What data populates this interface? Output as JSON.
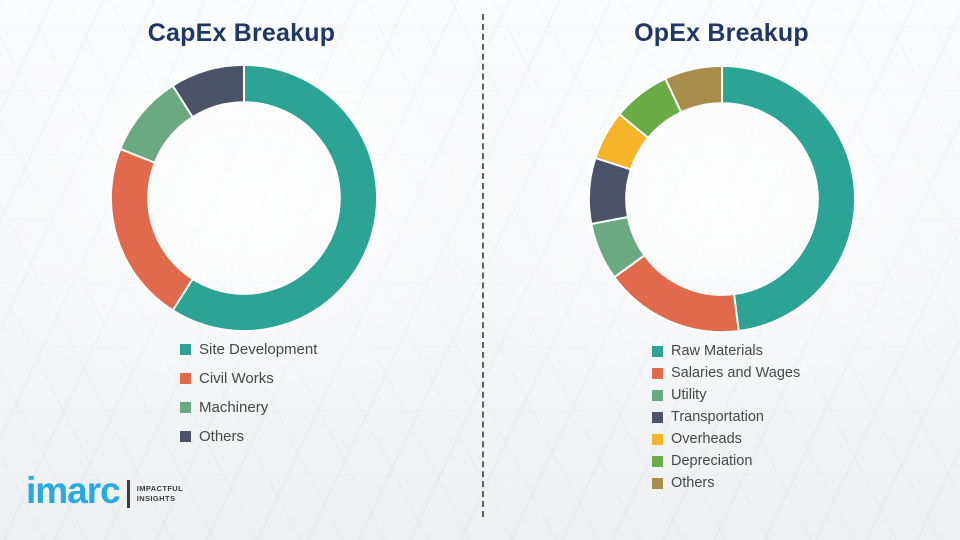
{
  "page": {
    "background_color": "#f7f8f9",
    "divider_color": "#5f6063",
    "title_color": "#1f3864",
    "legend_text_color": "#474747"
  },
  "chart_data": [
    {
      "type": "pie",
      "subtype": "donut",
      "title": "CapEx Breakup",
      "categories": [
        "Site Development",
        "Civil Works",
        "Machinery",
        "Others"
      ],
      "values": [
        59,
        22,
        10,
        9
      ],
      "colors": [
        "#2ca495",
        "#e06a4b",
        "#6baa80",
        "#4c5268"
      ],
      "start_angle_deg": 0,
      "donut_hole_ratio": 0.72,
      "legend_position": "bottom",
      "separator_color": "#ffffff"
    },
    {
      "type": "pie",
      "subtype": "donut",
      "title": "OpEx Breakup",
      "categories": [
        "Raw Materials",
        "Salaries and Wages",
        "Utility",
        "Transportation",
        "Overheads",
        "Depreciation",
        "Others"
      ],
      "values": [
        48,
        17,
        7,
        8,
        6,
        7,
        7
      ],
      "colors": [
        "#2ca495",
        "#e06a4b",
        "#6baa80",
        "#4c5268",
        "#f5b42a",
        "#6bab45",
        "#a78c4c"
      ],
      "start_angle_deg": 0,
      "donut_hole_ratio": 0.72,
      "legend_position": "bottom",
      "separator_color": "#ffffff"
    }
  ],
  "logo": {
    "brand": "imarc",
    "brand_color": "#29a9e1",
    "tagline_line1": "IMPACTFUL",
    "tagline_line2": "INSIGHTS"
  }
}
